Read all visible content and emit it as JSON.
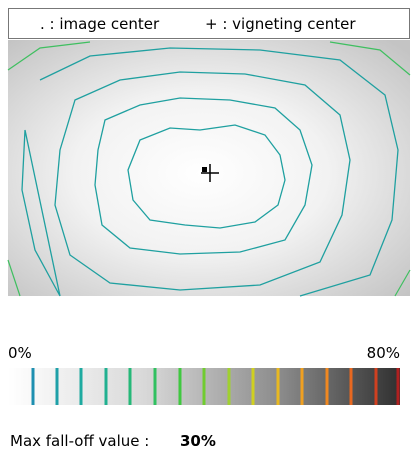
{
  "legend": {
    "image_center": ". : image center",
    "vignetting_center": "+ : vigneting center"
  },
  "scale": {
    "min_label": "0%",
    "max_label": "80%"
  },
  "result": {
    "label": "Max fall-off value :",
    "value": "30%"
  }
}
